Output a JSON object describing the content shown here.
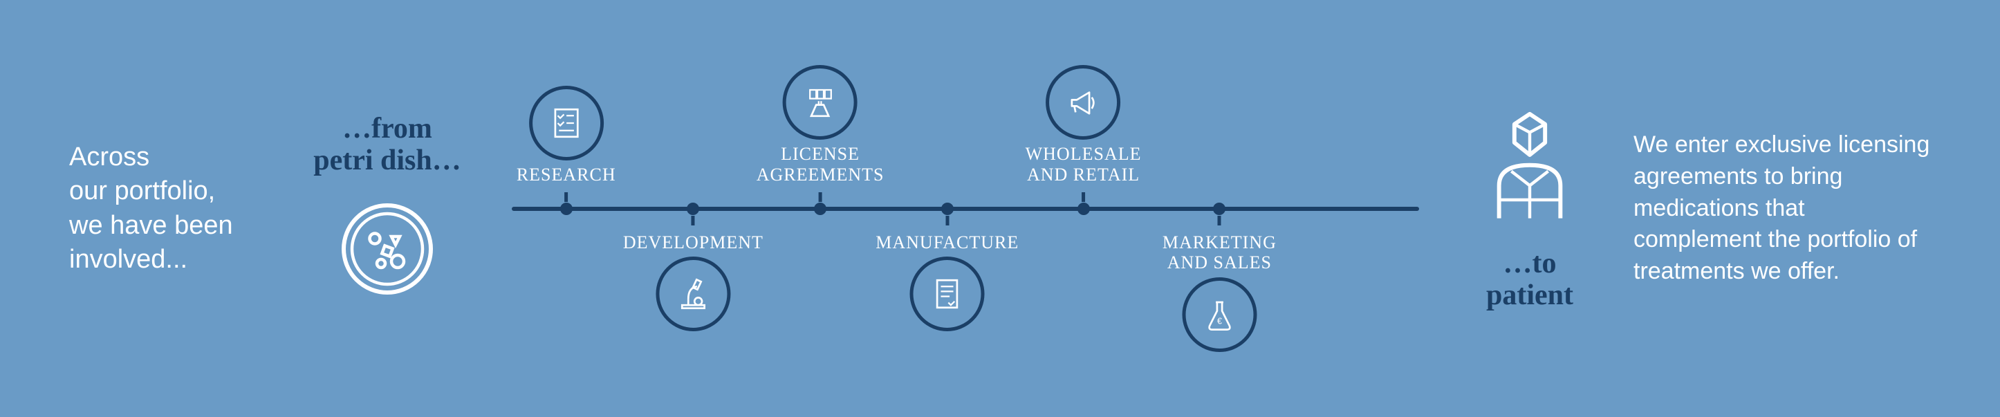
{
  "background_color": "#6a9bc6",
  "accent_color": "#1b3f66",
  "text_color": "#ffffff",
  "intro": "Across\nour portfolio,\nwe have been\ninvolved...",
  "from_label": "…from\npetri dish…",
  "to_label": "…to\npatient",
  "outro": "We enter exclusive licensing agreements to bring medications that complement the portfolio of treatments we offer.",
  "timeline": {
    "line_color": "#1b3f66",
    "circle_border_color": "#1b3f66",
    "circle_border_width": 5,
    "circle_diameter": 108,
    "steps": [
      {
        "label": "RESEARCH",
        "position": "top",
        "x_pct": 6,
        "icon": "checklist"
      },
      {
        "label": "DEVELOPMENT",
        "position": "bottom",
        "x_pct": 20,
        "icon": "microscope"
      },
      {
        "label": "LICENSE\nAGREEMENTS",
        "position": "top",
        "x_pct": 34,
        "icon": "test-tubes"
      },
      {
        "label": "MANUFACTURE",
        "position": "bottom",
        "x_pct": 48,
        "icon": "document"
      },
      {
        "label": "WHOLESALE\nAND RETAIL",
        "position": "top",
        "x_pct": 63,
        "icon": "megaphone"
      },
      {
        "label": "MARKETING\nAND SALES",
        "position": "bottom",
        "x_pct": 78,
        "icon": "flask"
      }
    ]
  }
}
